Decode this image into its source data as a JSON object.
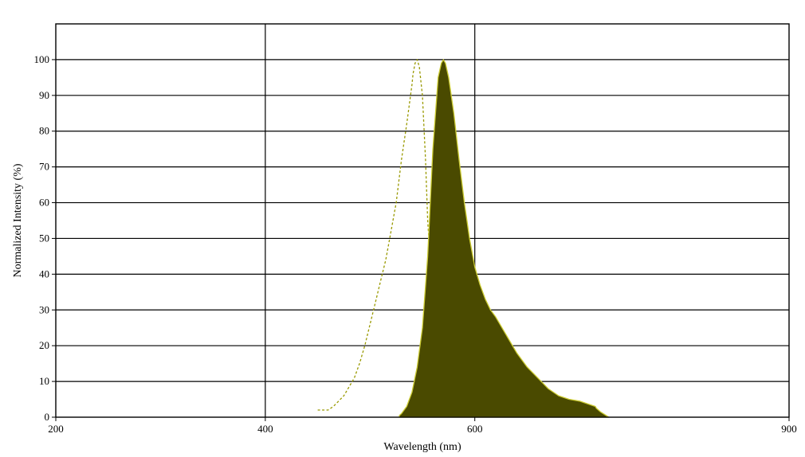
{
  "chart_data": {
    "type": "area",
    "title": "",
    "xlabel": "Wavelength (nm)",
    "ylabel": "Normalized Intensity (%)",
    "xlim": [
      200,
      900
    ],
    "ylim": [
      0,
      110
    ],
    "x_ticks": [
      200,
      400,
      600,
      900
    ],
    "y_ticks": [
      0,
      10,
      20,
      30,
      40,
      50,
      60,
      70,
      80,
      90,
      100
    ],
    "grid": true,
    "legend": "none",
    "colors": {
      "emission_fill": "#4a4a00",
      "emission_stroke": "#cccc33",
      "excitation_stroke": "#999900",
      "grid": "#000000"
    },
    "series": [
      {
        "style": "dashed-line",
        "x": [
          450,
          460,
          465,
          475,
          485,
          490,
          495,
          500,
          505,
          510,
          515,
          520,
          525,
          530,
          535,
          540,
          541,
          543,
          545,
          547,
          550,
          553,
          555,
          560,
          565,
          570,
          575,
          580,
          585,
          590,
          595,
          600
        ],
        "y": [
          2,
          2,
          3,
          6,
          11,
          15,
          20,
          26,
          32,
          38,
          44,
          52,
          60,
          72,
          82,
          93,
          96,
          99,
          100,
          98,
          90,
          72,
          55,
          32,
          20,
          12,
          7,
          4,
          2,
          1,
          0.5,
          0
        ]
      },
      {
        "style": "filled-area",
        "x": [
          528,
          530,
          535,
          540,
          545,
          550,
          555,
          560,
          565,
          568,
          570,
          572,
          575,
          580,
          585,
          590,
          595,
          600,
          605,
          610,
          615,
          620,
          630,
          640,
          650,
          660,
          670,
          680,
          690,
          700,
          710,
          715,
          716,
          720,
          728
        ],
        "y": [
          0.5,
          1,
          3,
          7,
          14,
          25,
          45,
          75,
          95,
          99,
          100,
          99,
          95,
          85,
          72,
          60,
          50,
          42,
          37,
          33,
          30,
          28,
          23,
          18,
          14,
          11,
          8,
          6,
          5,
          4.5,
          3.5,
          3,
          2.5,
          1.5,
          0
        ]
      }
    ]
  }
}
